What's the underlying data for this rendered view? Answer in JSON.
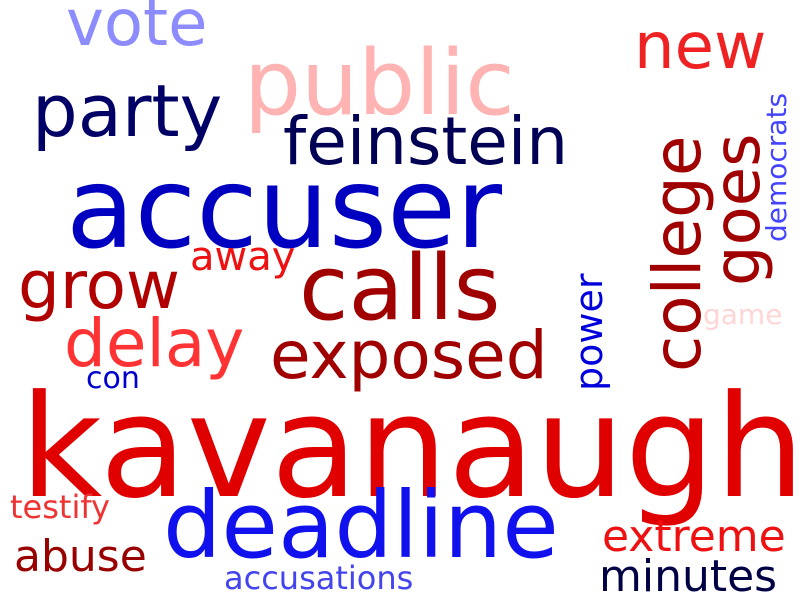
{
  "words": [
    {
      "text": "kavanaugh",
      "color": "#e00000"
    },
    {
      "text": "accuser",
      "color": "#0000c0"
    },
    {
      "text": "deadline",
      "color": "#1111ee"
    },
    {
      "text": "public",
      "color": "#ffb3b3"
    },
    {
      "text": "calls",
      "color": "#a00000"
    },
    {
      "text": "party",
      "color": "#000066"
    },
    {
      "text": "feinstein",
      "color": "#000055"
    },
    {
      "text": "exposed",
      "color": "#a00000"
    },
    {
      "text": "grow",
      "color": "#b00000"
    },
    {
      "text": "delay",
      "color": "#ff3333"
    },
    {
      "text": "vote",
      "color": "#8c8cff"
    },
    {
      "text": "new",
      "color": "#ee2222"
    },
    {
      "text": "college",
      "color": "#a00000"
    },
    {
      "text": "goes",
      "color": "#a00000"
    },
    {
      "text": "democrats",
      "color": "#4444ff"
    },
    {
      "text": "power",
      "color": "#0000dd"
    },
    {
      "text": "away",
      "color": "#ee1111"
    },
    {
      "text": "game",
      "color": "#ffd6d6"
    },
    {
      "text": "con",
      "color": "#0000cc"
    },
    {
      "text": "testify",
      "color": "#ee3333"
    },
    {
      "text": "abuse",
      "color": "#990000"
    },
    {
      "text": "extreme",
      "color": "#ee1111"
    },
    {
      "text": "minutes",
      "color": "#000044"
    },
    {
      "text": "accusations",
      "color": "#4444ee"
    }
  ]
}
